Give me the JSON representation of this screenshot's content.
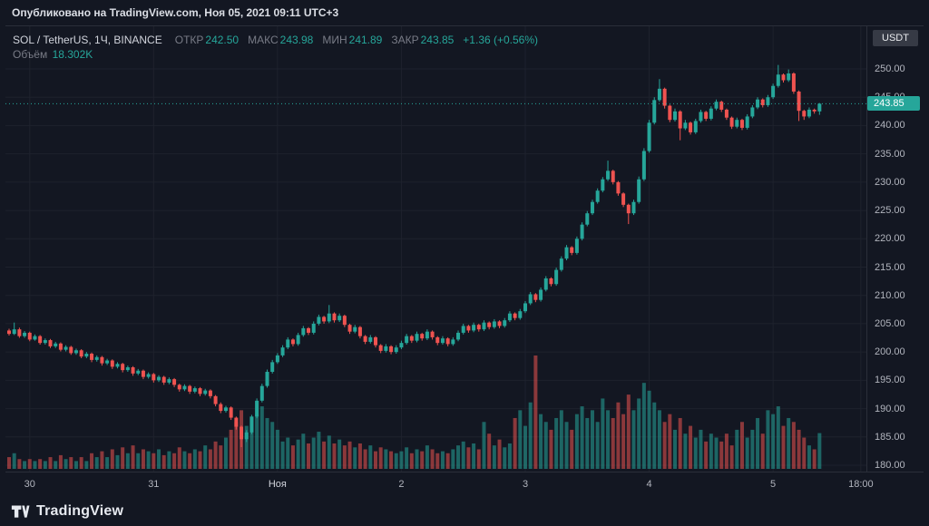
{
  "header": {
    "published": "Опубликовано на TradingView.com, Ноя 05, 2021 09:11 UTC+3"
  },
  "legend": {
    "symbol": "SOL / TetherUS, 1Ч, BINANCE",
    "fields": [
      {
        "label": "ОТКР",
        "value": "242.50"
      },
      {
        "label": "МАКС",
        "value": "243.98"
      },
      {
        "label": "МИН",
        "value": "241.89"
      },
      {
        "label": "ЗАКР",
        "value": "243.85"
      }
    ],
    "change": "+1.36 (+0.56%)",
    "volume_label": "Объём",
    "volume_value": "18.302K"
  },
  "axis": {
    "currency_badge": "USDT",
    "price_ticks": [
      "250.00",
      "245.00",
      "240.00",
      "235.00",
      "230.00",
      "225.00",
      "220.00",
      "215.00",
      "210.00",
      "205.00",
      "200.00",
      "195.00",
      "190.00",
      "185.00",
      "180.00"
    ],
    "time_ticks": [
      {
        "label": "30",
        "i": 4
      },
      {
        "label": "31",
        "i": 28
      },
      {
        "label": "Ноя",
        "i": 52,
        "major": true
      },
      {
        "label": "2",
        "i": 76
      },
      {
        "label": "3",
        "i": 100
      },
      {
        "label": "4",
        "i": 124
      },
      {
        "label": "5",
        "i": 148
      },
      {
        "label": "18:00",
        "i": 165
      }
    ],
    "last_price": {
      "value": "243.85",
      "price": 243.85
    }
  },
  "colors": {
    "background": "#131722",
    "up": "#26a69a",
    "down": "#ef5350",
    "volume_up": "rgba(38,166,154,0.55)",
    "volume_down": "rgba(239,83,80,0.55)",
    "grid": "#1e222d",
    "panel_border": "#2a2e39",
    "axis_text": "#b2b5be",
    "muted_text": "#787b86",
    "badge_bg": "#363a45"
  },
  "footer": {
    "brand": "TradingView"
  },
  "chart_data": {
    "type": "candlestick",
    "symbol": "SOL/USDT",
    "exchange": "BINANCE",
    "interval": "1Ч",
    "ylim": [
      180,
      250
    ],
    "grid": true,
    "last_close": 243.85,
    "last_volume_k": 18.302,
    "columns": [
      "open",
      "high",
      "low",
      "close",
      "volume_k"
    ],
    "candles": [
      [
        203.8,
        204.1,
        202.9,
        203.2,
        6
      ],
      [
        203.2,
        205.2,
        203.0,
        204.0,
        8
      ],
      [
        204.0,
        204.3,
        202.5,
        202.8,
        5
      ],
      [
        202.8,
        203.7,
        202.5,
        203.4,
        4
      ],
      [
        203.4,
        203.6,
        201.9,
        202.2,
        5
      ],
      [
        202.2,
        203.1,
        202.0,
        202.8,
        4
      ],
      [
        202.8,
        203.0,
        201.3,
        201.6,
        5
      ],
      [
        201.6,
        202.4,
        201.3,
        202.1,
        4
      ],
      [
        202.1,
        202.3,
        200.7,
        201.0,
        6
      ],
      [
        201.0,
        201.8,
        200.7,
        201.5,
        4
      ],
      [
        201.5,
        201.7,
        200.1,
        200.4,
        7
      ],
      [
        200.4,
        201.2,
        200.1,
        200.9,
        5
      ],
      [
        200.9,
        201.1,
        199.5,
        199.8,
        6
      ],
      [
        199.8,
        200.6,
        199.5,
        200.3,
        4
      ],
      [
        200.3,
        200.5,
        198.9,
        199.2,
        6
      ],
      [
        199.2,
        200.0,
        198.9,
        199.7,
        4
      ],
      [
        199.7,
        199.9,
        198.2,
        198.6,
        8
      ],
      [
        198.6,
        199.4,
        198.3,
        199.1,
        6
      ],
      [
        199.1,
        199.3,
        197.6,
        198.0,
        9
      ],
      [
        198.0,
        198.8,
        197.7,
        198.5,
        6
      ],
      [
        198.5,
        198.7,
        197.0,
        197.4,
        10
      ],
      [
        197.4,
        198.2,
        197.1,
        197.9,
        7
      ],
      [
        197.9,
        198.1,
        196.4,
        196.8,
        11
      ],
      [
        196.8,
        197.6,
        196.5,
        197.3,
        8
      ],
      [
        197.3,
        197.5,
        195.8,
        196.2,
        12
      ],
      [
        196.2,
        197.0,
        195.9,
        196.7,
        8
      ],
      [
        196.7,
        196.9,
        195.2,
        195.6,
        10
      ],
      [
        195.6,
        196.4,
        195.3,
        196.1,
        9
      ],
      [
        196.1,
        196.3,
        194.6,
        195.0,
        8
      ],
      [
        195.0,
        195.9,
        194.7,
        195.6,
        10
      ],
      [
        195.6,
        195.8,
        194.2,
        194.6,
        7
      ],
      [
        194.6,
        195.5,
        194.3,
        195.2,
        9
      ],
      [
        195.2,
        195.4,
        193.8,
        194.2,
        8
      ],
      [
        194.2,
        194.4,
        193.0,
        193.4,
        11
      ],
      [
        193.4,
        194.3,
        193.1,
        194.0,
        9
      ],
      [
        194.0,
        194.2,
        192.6,
        193.0,
        8
      ],
      [
        193.0,
        193.9,
        192.7,
        193.6,
        10
      ],
      [
        193.6,
        193.8,
        192.2,
        192.6,
        9
      ],
      [
        192.6,
        193.5,
        192.3,
        193.2,
        12
      ],
      [
        193.2,
        193.4,
        191.8,
        192.2,
        10
      ],
      [
        192.2,
        192.4,
        190.4,
        190.8,
        14
      ],
      [
        190.8,
        191.1,
        189.2,
        189.6,
        12
      ],
      [
        189.6,
        190.5,
        189.3,
        190.2,
        16
      ],
      [
        190.2,
        190.4,
        188.0,
        188.4,
        20
      ],
      [
        188.4,
        188.6,
        186.3,
        186.8,
        24
      ],
      [
        186.8,
        187.0,
        183.2,
        184.6,
        30
      ],
      [
        184.6,
        186.2,
        184.1,
        185.8,
        22
      ],
      [
        185.8,
        188.9,
        185.5,
        188.6,
        26
      ],
      [
        188.6,
        191.8,
        188.3,
        191.4,
        28
      ],
      [
        191.4,
        194.4,
        191.1,
        194.0,
        32
      ],
      [
        194.0,
        196.9,
        193.7,
        196.5,
        26
      ],
      [
        196.5,
        198.6,
        196.2,
        198.2,
        24
      ],
      [
        198.2,
        199.8,
        197.9,
        199.4,
        20
      ],
      [
        199.4,
        201.2,
        199.1,
        200.8,
        14
      ],
      [
        200.8,
        202.6,
        200.5,
        202.2,
        16
      ],
      [
        202.2,
        202.4,
        201.0,
        201.4,
        12
      ],
      [
        201.4,
        203.4,
        201.1,
        203.0,
        15
      ],
      [
        203.0,
        204.6,
        202.7,
        204.2,
        18
      ],
      [
        204.2,
        204.4,
        203.0,
        203.4,
        13
      ],
      [
        203.4,
        205.4,
        203.1,
        205.0,
        16
      ],
      [
        205.0,
        206.6,
        204.7,
        206.2,
        19
      ],
      [
        206.2,
        206.4,
        205.0,
        205.4,
        14
      ],
      [
        205.4,
        208.3,
        205.1,
        206.8,
        17
      ],
      [
        206.8,
        207.0,
        205.2,
        205.6,
        13
      ],
      [
        205.6,
        206.8,
        205.3,
        206.4,
        15
      ],
      [
        206.4,
        206.6,
        204.4,
        204.8,
        12
      ],
      [
        204.8,
        205.0,
        203.2,
        203.6,
        14
      ],
      [
        203.6,
        204.8,
        203.3,
        204.4,
        11
      ],
      [
        204.4,
        204.6,
        202.4,
        202.8,
        13
      ],
      [
        202.8,
        203.0,
        201.4,
        201.8,
        10
      ],
      [
        201.8,
        203.0,
        201.5,
        202.6,
        12
      ],
      [
        202.6,
        202.8,
        200.8,
        201.2,
        9
      ],
      [
        201.2,
        201.4,
        199.8,
        200.2,
        11
      ],
      [
        200.2,
        201.4,
        199.9,
        201.0,
        10
      ],
      [
        201.0,
        201.2,
        199.6,
        200.0,
        9
      ],
      [
        200.0,
        201.2,
        199.7,
        200.8,
        8
      ],
      [
        200.8,
        202.0,
        200.5,
        201.6,
        9
      ],
      [
        201.6,
        203.2,
        201.3,
        202.8,
        11
      ],
      [
        202.8,
        203.0,
        201.6,
        202.0,
        8
      ],
      [
        202.0,
        203.6,
        201.7,
        203.2,
        10
      ],
      [
        203.2,
        203.4,
        202.0,
        202.4,
        9
      ],
      [
        202.4,
        204.0,
        202.1,
        203.6,
        12
      ],
      [
        203.6,
        203.8,
        202.2,
        202.6,
        10
      ],
      [
        202.6,
        202.8,
        201.2,
        201.6,
        8
      ],
      [
        201.6,
        202.8,
        201.3,
        202.4,
        9
      ],
      [
        202.4,
        202.6,
        201.0,
        201.4,
        8
      ],
      [
        201.4,
        202.6,
        201.1,
        202.2,
        10
      ],
      [
        202.2,
        203.8,
        201.9,
        203.4,
        12
      ],
      [
        203.4,
        205.0,
        203.1,
        204.6,
        14
      ],
      [
        204.6,
        204.8,
        203.4,
        203.8,
        11
      ],
      [
        203.8,
        205.2,
        203.5,
        204.8,
        13
      ],
      [
        204.8,
        205.0,
        203.6,
        204.0,
        10
      ],
      [
        204.0,
        205.6,
        203.7,
        205.2,
        24
      ],
      [
        205.2,
        205.4,
        204.0,
        204.4,
        18
      ],
      [
        204.4,
        205.8,
        204.1,
        205.4,
        12
      ],
      [
        205.4,
        205.6,
        204.2,
        204.6,
        15
      ],
      [
        204.6,
        206.0,
        204.3,
        205.6,
        11
      ],
      [
        205.6,
        207.2,
        205.3,
        206.8,
        13
      ],
      [
        206.8,
        207.0,
        205.6,
        206.0,
        26
      ],
      [
        206.0,
        207.6,
        205.7,
        207.2,
        30
      ],
      [
        207.2,
        209.0,
        206.9,
        208.6,
        22
      ],
      [
        208.6,
        210.6,
        208.3,
        210.2,
        34
      ],
      [
        210.2,
        210.4,
        208.8,
        209.2,
        58
      ],
      [
        209.2,
        211.4,
        208.9,
        211.0,
        28
      ],
      [
        211.0,
        213.4,
        210.7,
        213.0,
        24
      ],
      [
        213.0,
        213.2,
        211.6,
        212.0,
        20
      ],
      [
        212.0,
        214.9,
        211.7,
        214.5,
        26
      ],
      [
        214.5,
        216.9,
        214.2,
        216.5,
        30
      ],
      [
        216.5,
        218.9,
        216.2,
        218.5,
        24
      ],
      [
        218.5,
        218.7,
        217.1,
        217.5,
        20
      ],
      [
        217.5,
        220.4,
        217.2,
        220.0,
        28
      ],
      [
        220.0,
        222.9,
        219.7,
        222.5,
        32
      ],
      [
        222.5,
        224.9,
        222.2,
        224.5,
        26
      ],
      [
        224.5,
        226.9,
        224.2,
        226.5,
        30
      ],
      [
        226.5,
        228.9,
        226.2,
        228.5,
        24
      ],
      [
        228.5,
        230.9,
        228.2,
        230.5,
        36
      ],
      [
        230.5,
        233.8,
        230.2,
        232.0,
        30
      ],
      [
        232.0,
        232.2,
        229.6,
        230.0,
        26
      ],
      [
        230.0,
        230.2,
        227.6,
        228.0,
        34
      ],
      [
        228.0,
        228.2,
        225.6,
        226.0,
        28
      ],
      [
        226.0,
        226.2,
        222.6,
        224.5,
        38
      ],
      [
        224.5,
        226.9,
        224.2,
        226.5,
        30
      ],
      [
        226.5,
        231.0,
        226.2,
        230.5,
        36
      ],
      [
        230.5,
        236.0,
        230.2,
        235.5,
        44
      ],
      [
        235.5,
        241.0,
        235.2,
        240.5,
        40
      ],
      [
        240.5,
        245.0,
        240.2,
        244.5,
        34
      ],
      [
        244.5,
        248.2,
        244.2,
        246.5,
        30
      ],
      [
        246.5,
        246.7,
        243.0,
        243.5,
        24
      ],
      [
        243.5,
        243.7,
        240.6,
        241.0,
        28
      ],
      [
        241.0,
        243.0,
        240.7,
        242.5,
        20
      ],
      [
        242.5,
        242.7,
        237.4,
        239.5,
        26
      ],
      [
        239.5,
        241.0,
        239.2,
        240.5,
        18
      ],
      [
        240.5,
        240.7,
        238.4,
        238.8,
        22
      ],
      [
        238.8,
        241.2,
        238.5,
        240.8,
        16
      ],
      [
        240.8,
        242.8,
        240.5,
        242.4,
        20
      ],
      [
        242.4,
        242.6,
        240.8,
        241.2,
        14
      ],
      [
        241.2,
        243.4,
        240.9,
        243.0,
        18
      ],
      [
        243.0,
        244.6,
        242.7,
        244.2,
        16
      ],
      [
        244.2,
        244.4,
        242.4,
        242.8,
        14
      ],
      [
        242.8,
        243.0,
        241.0,
        241.4,
        18
      ],
      [
        241.4,
        241.6,
        239.4,
        239.8,
        12
      ],
      [
        239.8,
        241.4,
        239.5,
        241.0,
        20
      ],
      [
        241.0,
        241.2,
        239.2,
        239.6,
        24
      ],
      [
        239.6,
        242.0,
        239.3,
        241.6,
        16
      ],
      [
        241.6,
        243.6,
        241.3,
        243.2,
        20
      ],
      [
        243.2,
        245.0,
        242.9,
        244.6,
        26
      ],
      [
        244.6,
        244.8,
        243.2,
        243.6,
        18
      ],
      [
        243.6,
        245.4,
        243.3,
        245.0,
        30
      ],
      [
        245.0,
        247.4,
        244.7,
        247.0,
        28
      ],
      [
        247.0,
        250.7,
        246.7,
        249.0,
        32
      ],
      [
        249.0,
        249.2,
        247.6,
        248.0,
        22
      ],
      [
        248.0,
        249.9,
        247.7,
        249.2,
        26
      ],
      [
        249.2,
        249.4,
        245.6,
        246.0,
        24
      ],
      [
        246.0,
        246.2,
        240.8,
        242.6,
        20
      ],
      [
        242.6,
        242.8,
        241.0,
        241.6,
        16
      ],
      [
        241.6,
        243.2,
        241.3,
        242.8,
        12
      ],
      [
        242.8,
        243.0,
        242.1,
        242.5,
        10
      ],
      [
        242.5,
        243.98,
        241.89,
        243.85,
        18.3
      ]
    ]
  }
}
